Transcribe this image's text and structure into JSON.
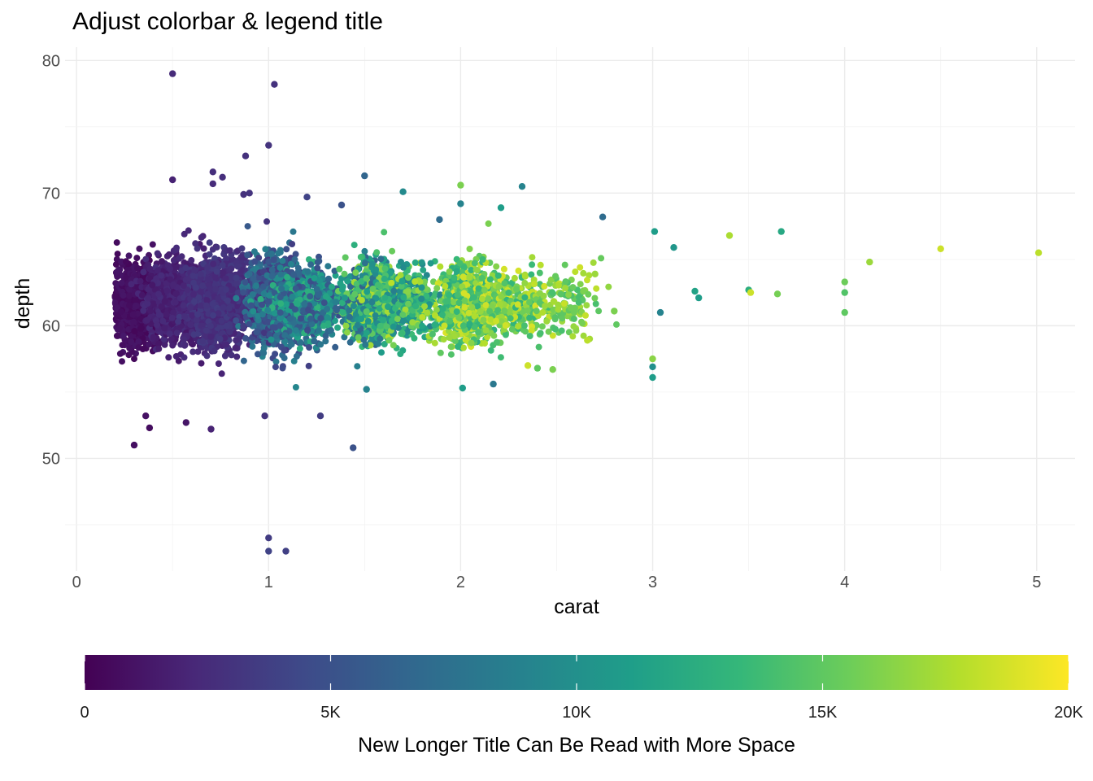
{
  "chart_data": {
    "type": "scatter",
    "title": "Adjust colorbar & legend title",
    "xlabel": "carat",
    "ylabel": "depth",
    "xlim": [
      -0.06,
      5.2
    ],
    "ylim": [
      41.5,
      81
    ],
    "x_ticks": [
      0,
      1,
      2,
      3,
      4,
      5
    ],
    "x_tick_labels": [
      "0",
      "1",
      "2",
      "3",
      "4",
      "5"
    ],
    "y_ticks": [
      50,
      60,
      70,
      80
    ],
    "y_tick_labels": [
      "50",
      "60",
      "70",
      "80"
    ],
    "grid": true,
    "color_scale": {
      "title": "New Longer Title Can Be Read with More Space",
      "palette": "viridis",
      "limits": [
        0,
        20000
      ],
      "breaks": [
        0,
        5000,
        10000,
        15000,
        20000
      ],
      "break_labels": [
        "0",
        "5K",
        "10K",
        "15K",
        "20K"
      ],
      "position": "bottom",
      "colors": [
        "#440154",
        "#482878",
        "#3E4A89",
        "#31688E",
        "#26828E",
        "#1F9E89",
        "#35B779",
        "#6DCD59",
        "#B4DE2C",
        "#FDE725"
      ]
    },
    "points": [
      {
        "x": 0.5,
        "y": 79.0,
        "price": 2400
      },
      {
        "x": 1.03,
        "y": 78.2,
        "price": 2900
      },
      {
        "x": 1.0,
        "y": 73.6,
        "price": 3000
      },
      {
        "x": 0.88,
        "y": 72.8,
        "price": 2800
      },
      {
        "x": 0.71,
        "y": 71.6,
        "price": 2700
      },
      {
        "x": 0.5,
        "y": 71.0,
        "price": 1900
      },
      {
        "x": 1.5,
        "y": 71.3,
        "price": 6500
      },
      {
        "x": 2.0,
        "y": 70.6,
        "price": 16000
      },
      {
        "x": 2.32,
        "y": 70.5,
        "price": 9000
      },
      {
        "x": 1.7,
        "y": 70.1,
        "price": 9500
      },
      {
        "x": 2.74,
        "y": 68.2,
        "price": 7000
      },
      {
        "x": 3.01,
        "y": 67.1,
        "price": 11000
      },
      {
        "x": 3.4,
        "y": 66.8,
        "price": 17500
      },
      {
        "x": 3.67,
        "y": 67.1,
        "price": 12000
      },
      {
        "x": 4.5,
        "y": 65.8,
        "price": 18500
      },
      {
        "x": 5.01,
        "y": 65.5,
        "price": 18000
      },
      {
        "x": 4.13,
        "y": 64.8,
        "price": 17000
      },
      {
        "x": 3.11,
        "y": 65.9,
        "price": 10500
      },
      {
        "x": 4.0,
        "y": 63.3,
        "price": 15500
      },
      {
        "x": 4.0,
        "y": 62.5,
        "price": 14500
      },
      {
        "x": 4.0,
        "y": 61.0,
        "price": 15000
      },
      {
        "x": 3.5,
        "y": 62.7,
        "price": 12500
      },
      {
        "x": 3.51,
        "y": 62.5,
        "price": 18500
      },
      {
        "x": 3.65,
        "y": 62.4,
        "price": 15800
      },
      {
        "x": 3.22,
        "y": 62.6,
        "price": 11500
      },
      {
        "x": 3.24,
        "y": 62.1,
        "price": 11000
      },
      {
        "x": 3.04,
        "y": 61.0,
        "price": 9000
      },
      {
        "x": 3.0,
        "y": 57.5,
        "price": 16500
      },
      {
        "x": 3.0,
        "y": 56.9,
        "price": 10000
      },
      {
        "x": 3.0,
        "y": 56.1,
        "price": 11000
      },
      {
        "x": 0.3,
        "y": 51.0,
        "price": 800
      },
      {
        "x": 0.57,
        "y": 52.7,
        "price": 1200
      },
      {
        "x": 0.7,
        "y": 52.2,
        "price": 2000
      },
      {
        "x": 0.98,
        "y": 53.2,
        "price": 3000
      },
      {
        "x": 1.27,
        "y": 53.2,
        "price": 3500
      },
      {
        "x": 1.44,
        "y": 50.8,
        "price": 5000
      },
      {
        "x": 1.0,
        "y": 44.0,
        "price": 3500
      },
      {
        "x": 1.0,
        "y": 43.0,
        "price": 4000
      },
      {
        "x": 1.09,
        "y": 43.0,
        "price": 3800
      },
      {
        "x": 0.38,
        "y": 52.3,
        "price": 700
      },
      {
        "x": 0.36,
        "y": 53.2,
        "price": 900
      },
      {
        "x": 2.01,
        "y": 55.3,
        "price": 11000
      },
      {
        "x": 1.51,
        "y": 55.2,
        "price": 9000
      },
      {
        "x": 2.17,
        "y": 55.6,
        "price": 8000
      },
      {
        "x": 2.48,
        "y": 56.7,
        "price": 16000
      },
      {
        "x": 2.4,
        "y": 56.8,
        "price": 15000
      },
      {
        "x": 2.7,
        "y": 63.9,
        "price": 17000
      },
      {
        "x": 2.8,
        "y": 61.1,
        "price": 16000
      },
      {
        "x": 2.66,
        "y": 58.9,
        "price": 18000
      },
      {
        "x": 2.35,
        "y": 57.0,
        "price": 18500
      },
      {
        "x": 2.0,
        "y": 69.2,
        "price": 9000
      },
      {
        "x": 1.89,
        "y": 68.0,
        "price": 7000
      },
      {
        "x": 2.21,
        "y": 68.9,
        "price": 11000
      },
      {
        "x": 1.38,
        "y": 69.1,
        "price": 5000
      },
      {
        "x": 1.2,
        "y": 69.7,
        "price": 4000
      },
      {
        "x": 0.9,
        "y": 70.0,
        "price": 3000
      },
      {
        "x": 0.71,
        "y": 70.7,
        "price": 2500
      },
      {
        "x": 0.76,
        "y": 71.2,
        "price": 2700
      },
      {
        "x": 0.87,
        "y": 69.9,
        "price": 2800
      }
    ],
    "density_clusters": [
      {
        "cx": 0.31,
        "sx": 0.065,
        "cy": 61.7,
        "sy": 1.3,
        "n": 1300,
        "p_lo": 300,
        "p_hi": 1200
      },
      {
        "cx": 0.55,
        "sx": 0.09,
        "cy": 61.8,
        "sy": 1.5,
        "n": 1100,
        "p_lo": 1200,
        "p_hi": 2600
      },
      {
        "cx": 0.75,
        "sx": 0.08,
        "cy": 61.8,
        "sy": 1.6,
        "n": 1200,
        "p_lo": 2000,
        "p_hi": 3500
      },
      {
        "cx": 1.03,
        "sx": 0.07,
        "cy": 61.8,
        "sy": 1.6,
        "n": 1100,
        "p_lo": 3000,
        "p_hi": 9000
      },
      {
        "cx": 1.2,
        "sx": 0.1,
        "cy": 61.6,
        "sy": 1.3,
        "n": 700,
        "p_lo": 4500,
        "p_hi": 13000
      },
      {
        "cx": 1.54,
        "sx": 0.07,
        "cy": 61.7,
        "sy": 1.4,
        "n": 800,
        "p_lo": 6000,
        "p_hi": 17500
      },
      {
        "cx": 1.72,
        "sx": 0.1,
        "cy": 61.7,
        "sy": 1.3,
        "n": 500,
        "p_lo": 8500,
        "p_hi": 18000
      },
      {
        "cx": 2.03,
        "sx": 0.06,
        "cy": 61.7,
        "sy": 1.4,
        "n": 800,
        "p_lo": 12000,
        "p_hi": 19000
      },
      {
        "cx": 2.25,
        "sx": 0.12,
        "cy": 61.6,
        "sy": 1.2,
        "n": 400,
        "p_lo": 13000,
        "p_hi": 19000
      },
      {
        "cx": 2.55,
        "sx": 0.09,
        "cy": 61.6,
        "sy": 1.2,
        "n": 120,
        "p_lo": 14000,
        "p_hi": 18500
      }
    ]
  }
}
